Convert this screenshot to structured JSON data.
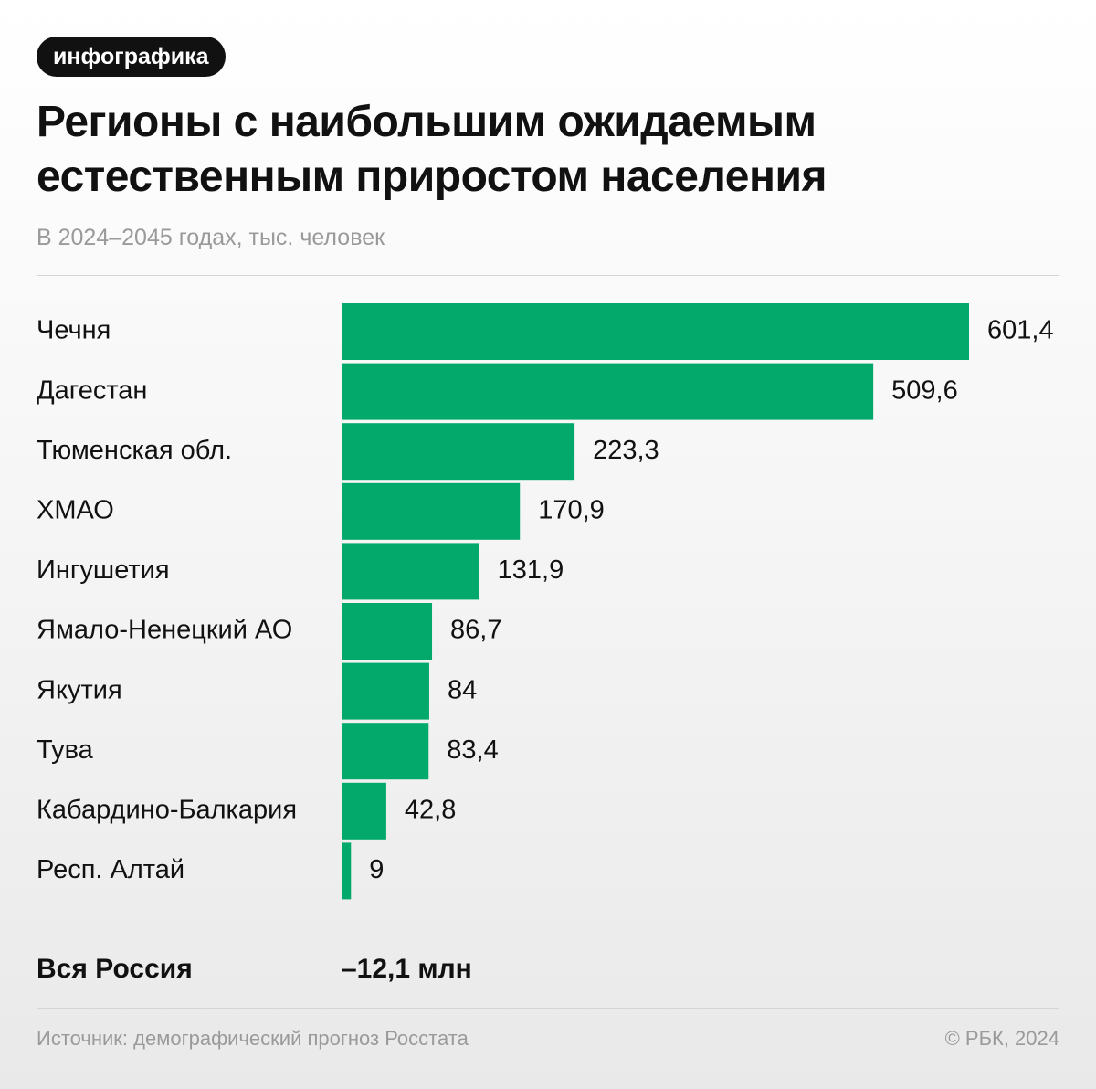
{
  "tag": "инфографика",
  "chart_data": {
    "type": "bar",
    "orientation": "horizontal",
    "title": "Регионы с наибольшим ожидаемым естественным приростом населения",
    "subtitle": "В 2024–2045 годах, тыс. человек",
    "categories": [
      "Чечня",
      "Дагестан",
      "Тюменская обл.",
      "ХМАО",
      "Ингушетия",
      "Ямало-Ненецкий АО",
      "Якутия",
      "Тува",
      "Кабардино-Балкария",
      "Респ. Алтай"
    ],
    "values": [
      601.4,
      509.6,
      223.3,
      170.9,
      131.9,
      86.7,
      84,
      83.4,
      42.8,
      9
    ],
    "value_labels": [
      "601,4",
      "509,6",
      "223,3",
      "170,9",
      "131,9",
      "86,7",
      "84",
      "83,4",
      "42,8",
      "9"
    ],
    "color": "#03a86b"
  },
  "summary": {
    "label": "Вся Россия",
    "value": "–12,1 млн"
  },
  "footer": {
    "source": "Источник: демографический прогноз Росстата",
    "copyright": "© РБК, 2024"
  }
}
